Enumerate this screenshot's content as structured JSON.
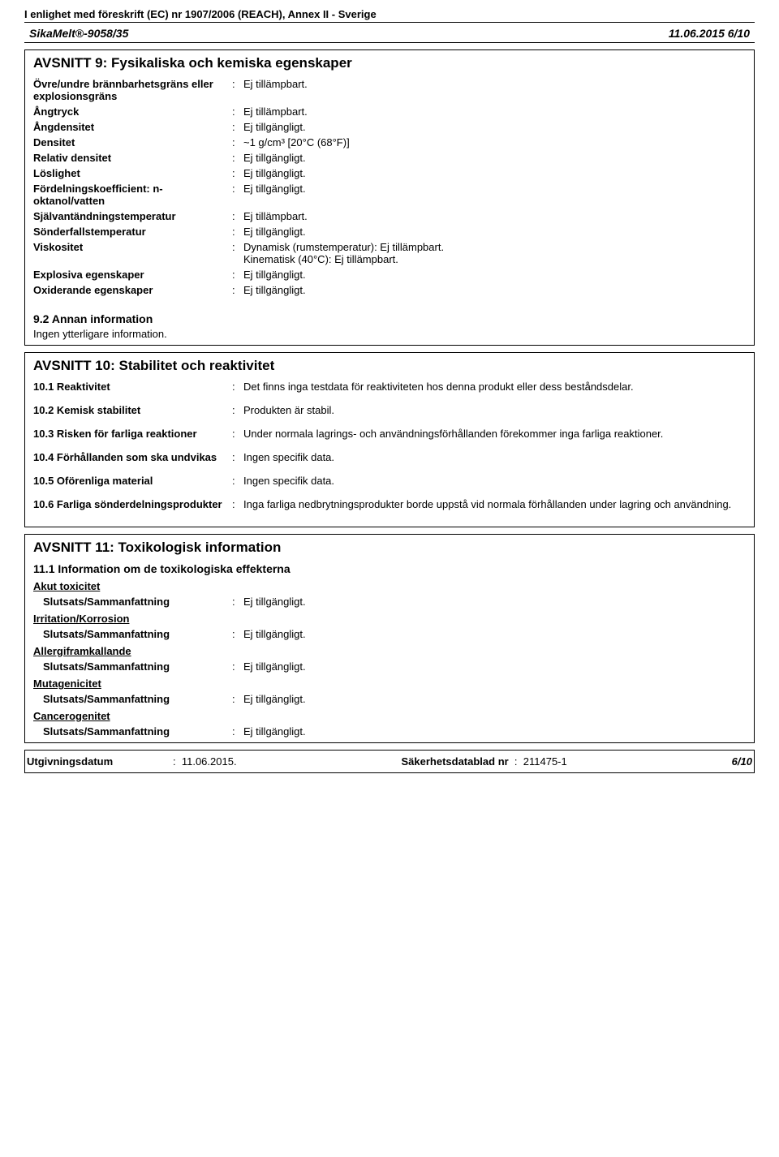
{
  "header": {
    "regulation": "I enlighet med föreskrift (EC) nr 1907/2006 (REACH), Annex II - Sverige",
    "product": "SikaMelt®-9058/35",
    "pageinfo": "11.06.2015 6/10"
  },
  "section9": {
    "title": "AVSNITT 9: Fysikaliska och kemiska egenskaper",
    "rows": [
      {
        "key": "Övre/undre brännbarhetsgräns eller explosionsgräns",
        "val": "Ej tillämpbart."
      },
      {
        "key": "Ångtryck",
        "val": "Ej tillämpbart."
      },
      {
        "key": "Ångdensitet",
        "val": "Ej tillgängligt."
      },
      {
        "key": "Densitet",
        "val": "~1 g/cm³ [20°C (68°F)]"
      },
      {
        "key": "Relativ densitet",
        "val": "Ej tillgängligt."
      },
      {
        "key": "Löslighet",
        "val": "Ej tillgängligt."
      },
      {
        "key": "Fördelningskoefficient: n-oktanol/vatten",
        "val": "Ej tillgängligt."
      },
      {
        "key": "Självantändningstemperatur",
        "val": "Ej tillämpbart."
      },
      {
        "key": "Sönderfallstemperatur",
        "val": "Ej tillgängligt."
      },
      {
        "key": "Viskositet",
        "val": "Dynamisk (rumstemperatur): Ej tillämpbart.\nKinematisk (40°C): Ej tillämpbart."
      },
      {
        "key": "Explosiva egenskaper",
        "val": "Ej tillgängligt."
      },
      {
        "key": "Oxiderande egenskaper",
        "val": "Ej tillgängligt."
      }
    ],
    "sub92": "9.2 Annan information",
    "sub92_text": "Ingen ytterligare information."
  },
  "section10": {
    "title": "AVSNITT 10: Stabilitet och reaktivitet",
    "rows": [
      {
        "key": "10.1 Reaktivitet",
        "val": "Det finns inga testdata för reaktiviteten hos denna produkt eller dess beståndsdelar."
      },
      {
        "key": "10.2 Kemisk stabilitet",
        "val": "Produkten är stabil."
      },
      {
        "key": "10.3 Risken för farliga reaktioner",
        "val": "Under normala lagrings- och användningsförhållanden förekommer inga farliga reaktioner."
      },
      {
        "key": "10.4 Förhållanden som ska undvikas",
        "val": "Ingen specifik data."
      },
      {
        "key": "10.5 Oförenliga material",
        "val": "Ingen specifik data."
      },
      {
        "key": "10.6 Farliga sönderdelningsprodukter",
        "val": "Inga farliga nedbrytningsprodukter borde uppstå vid normala förhållanden under lagring och användning."
      }
    ]
  },
  "section11": {
    "title": "AVSNITT 11: Toxikologisk information",
    "subtitle": "11.1 Information om de toxikologiska effekterna",
    "cats": [
      {
        "name": "Akut toxicitet",
        "key": "Slutsats/Sammanfattning",
        "val": "Ej tillgängligt."
      },
      {
        "name": "Irritation/Korrosion",
        "key": "Slutsats/Sammanfattning",
        "val": "Ej tillgängligt."
      },
      {
        "name": "Allergiframkallande",
        "key": "Slutsats/Sammanfattning",
        "val": "Ej tillgängligt."
      },
      {
        "name": "Mutagenicitet",
        "key": "Slutsats/Sammanfattning",
        "val": "Ej tillgängligt."
      },
      {
        "name": "Cancerogenitet",
        "key": "Slutsats/Sammanfattning",
        "val": "Ej tillgängligt."
      }
    ]
  },
  "footer": {
    "date_label": "Utgivningsdatum",
    "date_val": "11.06.2015.",
    "sheet_label": "Säkerhetsdatablad nr",
    "sheet_val": "211475-1",
    "page": "6/10"
  }
}
